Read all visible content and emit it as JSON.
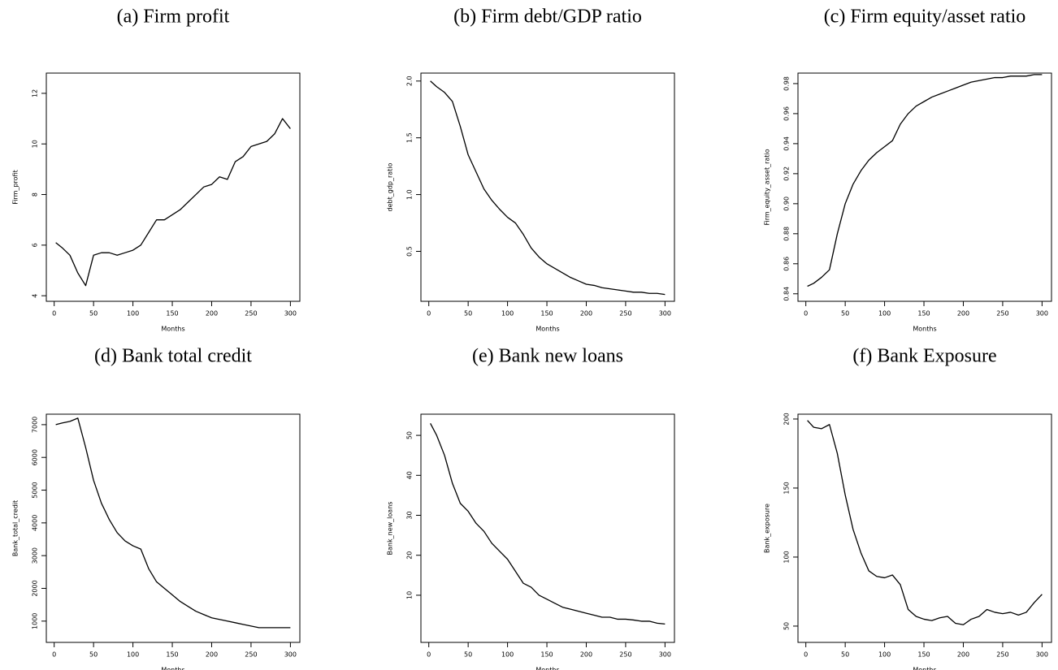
{
  "chart_data": [
    {
      "type": "line",
      "title": "(a) Firm profit",
      "xlabel": "Months",
      "ylabel": "Firm_profit",
      "color": "#000000",
      "x": [
        2,
        10,
        20,
        30,
        40,
        50,
        60,
        70,
        80,
        90,
        100,
        110,
        120,
        130,
        140,
        150,
        160,
        170,
        180,
        190,
        200,
        210,
        220,
        230,
        240,
        250,
        260,
        270,
        280,
        290,
        300
      ],
      "values": [
        6.1,
        5.9,
        5.6,
        4.9,
        4.4,
        5.6,
        5.7,
        5.7,
        5.6,
        5.7,
        5.8,
        6.0,
        6.5,
        7.0,
        7.0,
        7.2,
        7.4,
        7.7,
        8.0,
        8.3,
        8.4,
        8.7,
        8.6,
        9.3,
        9.5,
        9.9,
        10.0,
        10.1,
        10.4,
        11.0,
        10.6
      ],
      "xlim": [
        -10,
        312
      ],
      "xticks": [
        0,
        50,
        100,
        150,
        200,
        250,
        300
      ],
      "ylim": [
        3.78,
        12.8
      ],
      "yticks": [
        4,
        6,
        8,
        10,
        12
      ]
    },
    {
      "type": "line",
      "title": "(b) Firm debt/GDP ratio",
      "xlabel": "Months",
      "ylabel": "debt_gdp_ratio",
      "color": "#000000",
      "x": [
        2,
        10,
        20,
        30,
        40,
        50,
        60,
        70,
        80,
        90,
        100,
        110,
        120,
        130,
        140,
        150,
        160,
        170,
        180,
        190,
        200,
        210,
        220,
        230,
        240,
        250,
        260,
        270,
        280,
        290,
        300
      ],
      "values": [
        2.0,
        1.95,
        1.9,
        1.82,
        1.6,
        1.35,
        1.2,
        1.05,
        0.95,
        0.87,
        0.8,
        0.75,
        0.65,
        0.53,
        0.45,
        0.39,
        0.35,
        0.31,
        0.27,
        0.24,
        0.21,
        0.2,
        0.18,
        0.17,
        0.16,
        0.15,
        0.14,
        0.14,
        0.13,
        0.13,
        0.12
      ],
      "xlim": [
        -10,
        312
      ],
      "xticks": [
        0,
        50,
        100,
        150,
        200,
        250,
        300
      ],
      "ylim": [
        0.06,
        2.07
      ],
      "yticks": [
        0.5,
        {
          "value": 1,
          "label": "1.0"
        },
        1.5,
        {
          "value": 2,
          "label": "2.0"
        }
      ]
    },
    {
      "type": "line",
      "title": "(c) Firm equity/asset ratio",
      "xlabel": "Months",
      "ylabel": "Firm_equity_asset_ratio",
      "color": "#000000",
      "x": [
        2,
        10,
        20,
        30,
        40,
        50,
        60,
        70,
        80,
        90,
        100,
        110,
        120,
        130,
        140,
        150,
        160,
        170,
        180,
        190,
        200,
        210,
        220,
        230,
        240,
        250,
        260,
        270,
        280,
        290,
        300
      ],
      "values": [
        0.845,
        0.847,
        0.851,
        0.856,
        0.88,
        0.9,
        0.913,
        0.922,
        0.929,
        0.934,
        0.938,
        0.942,
        0.953,
        0.96,
        0.965,
        0.968,
        0.971,
        0.973,
        0.975,
        0.977,
        0.979,
        0.981,
        0.982,
        0.983,
        0.984,
        0.984,
        0.985,
        0.985,
        0.985,
        0.986,
        0.986
      ],
      "xlim": [
        -10,
        312
      ],
      "xticks": [
        0,
        50,
        100,
        150,
        200,
        250,
        300
      ],
      "ylim": [
        0.835,
        0.987
      ],
      "yticks": [
        0.84,
        0.86,
        0.88,
        {
          "value": 0.9,
          "label": "0.90"
        },
        0.92,
        0.94,
        0.96,
        0.98
      ]
    },
    {
      "type": "line",
      "title": "(d) Bank total credit",
      "xlabel": "Months",
      "ylabel": "Bank_total_credit",
      "color": "#000000",
      "x": [
        2,
        10,
        20,
        30,
        40,
        50,
        60,
        70,
        80,
        90,
        100,
        110,
        120,
        130,
        140,
        150,
        160,
        170,
        180,
        190,
        200,
        210,
        220,
        230,
        240,
        250,
        260,
        270,
        280,
        290,
        300
      ],
      "values": [
        7000,
        7050,
        7100,
        7200,
        6300,
        5300,
        4600,
        4100,
        3700,
        3450,
        3300,
        3200,
        2600,
        2200,
        2000,
        1800,
        1600,
        1450,
        1300,
        1200,
        1100,
        1050,
        1000,
        950,
        900,
        850,
        800,
        800,
        800,
        800,
        800
      ],
      "xlim": [
        -10,
        312
      ],
      "xticks": [
        0,
        50,
        100,
        150,
        200,
        250,
        300
      ],
      "ylim": [
        350,
        7320
      ],
      "yticks": [
        1000,
        2000,
        3000,
        4000,
        5000,
        6000,
        7000
      ]
    },
    {
      "type": "line",
      "title": "(e) Bank new loans",
      "xlabel": "Months",
      "ylabel": "Bank_new_loans",
      "color": "#000000",
      "x": [
        2,
        10,
        20,
        30,
        40,
        50,
        60,
        70,
        80,
        90,
        100,
        110,
        120,
        130,
        140,
        150,
        160,
        170,
        180,
        190,
        200,
        210,
        220,
        230,
        240,
        250,
        260,
        270,
        280,
        290,
        300
      ],
      "values": [
        53,
        50,
        45,
        38,
        33,
        31,
        28,
        26,
        23,
        21,
        19,
        16,
        13,
        12,
        10,
        9,
        8,
        7,
        6.5,
        6,
        5.5,
        5,
        4.5,
        4.5,
        4,
        4,
        3.8,
        3.5,
        3.5,
        3,
        2.8
      ],
      "xlim": [
        -10,
        312
      ],
      "xticks": [
        0,
        50,
        100,
        150,
        200,
        250,
        300
      ],
      "ylim": [
        -1.8,
        55.3
      ],
      "yticks": [
        10,
        20,
        30,
        40,
        50
      ]
    },
    {
      "type": "line",
      "title": "(f) Bank Exposure",
      "xlabel": "Months",
      "ylabel": "Bank_exposure",
      "color": "#000000",
      "x": [
        2,
        10,
        20,
        30,
        40,
        50,
        60,
        70,
        80,
        90,
        100,
        110,
        120,
        130,
        140,
        150,
        160,
        170,
        180,
        190,
        200,
        210,
        220,
        230,
        240,
        250,
        260,
        270,
        280,
        290,
        300
      ],
      "values": [
        199,
        194,
        193,
        196,
        175,
        145,
        120,
        103,
        90,
        86,
        85,
        87,
        80,
        62,
        57,
        55,
        54,
        56,
        57,
        52,
        51,
        55,
        57,
        62,
        60,
        59,
        60,
        58,
        60,
        67,
        73
      ],
      "xlim": [
        -10,
        312
      ],
      "xticks": [
        0,
        50,
        100,
        150,
        200,
        250,
        300
      ],
      "ylim": [
        38.2,
        203.5
      ],
      "yticks": [
        50,
        100,
        150,
        200
      ]
    }
  ]
}
